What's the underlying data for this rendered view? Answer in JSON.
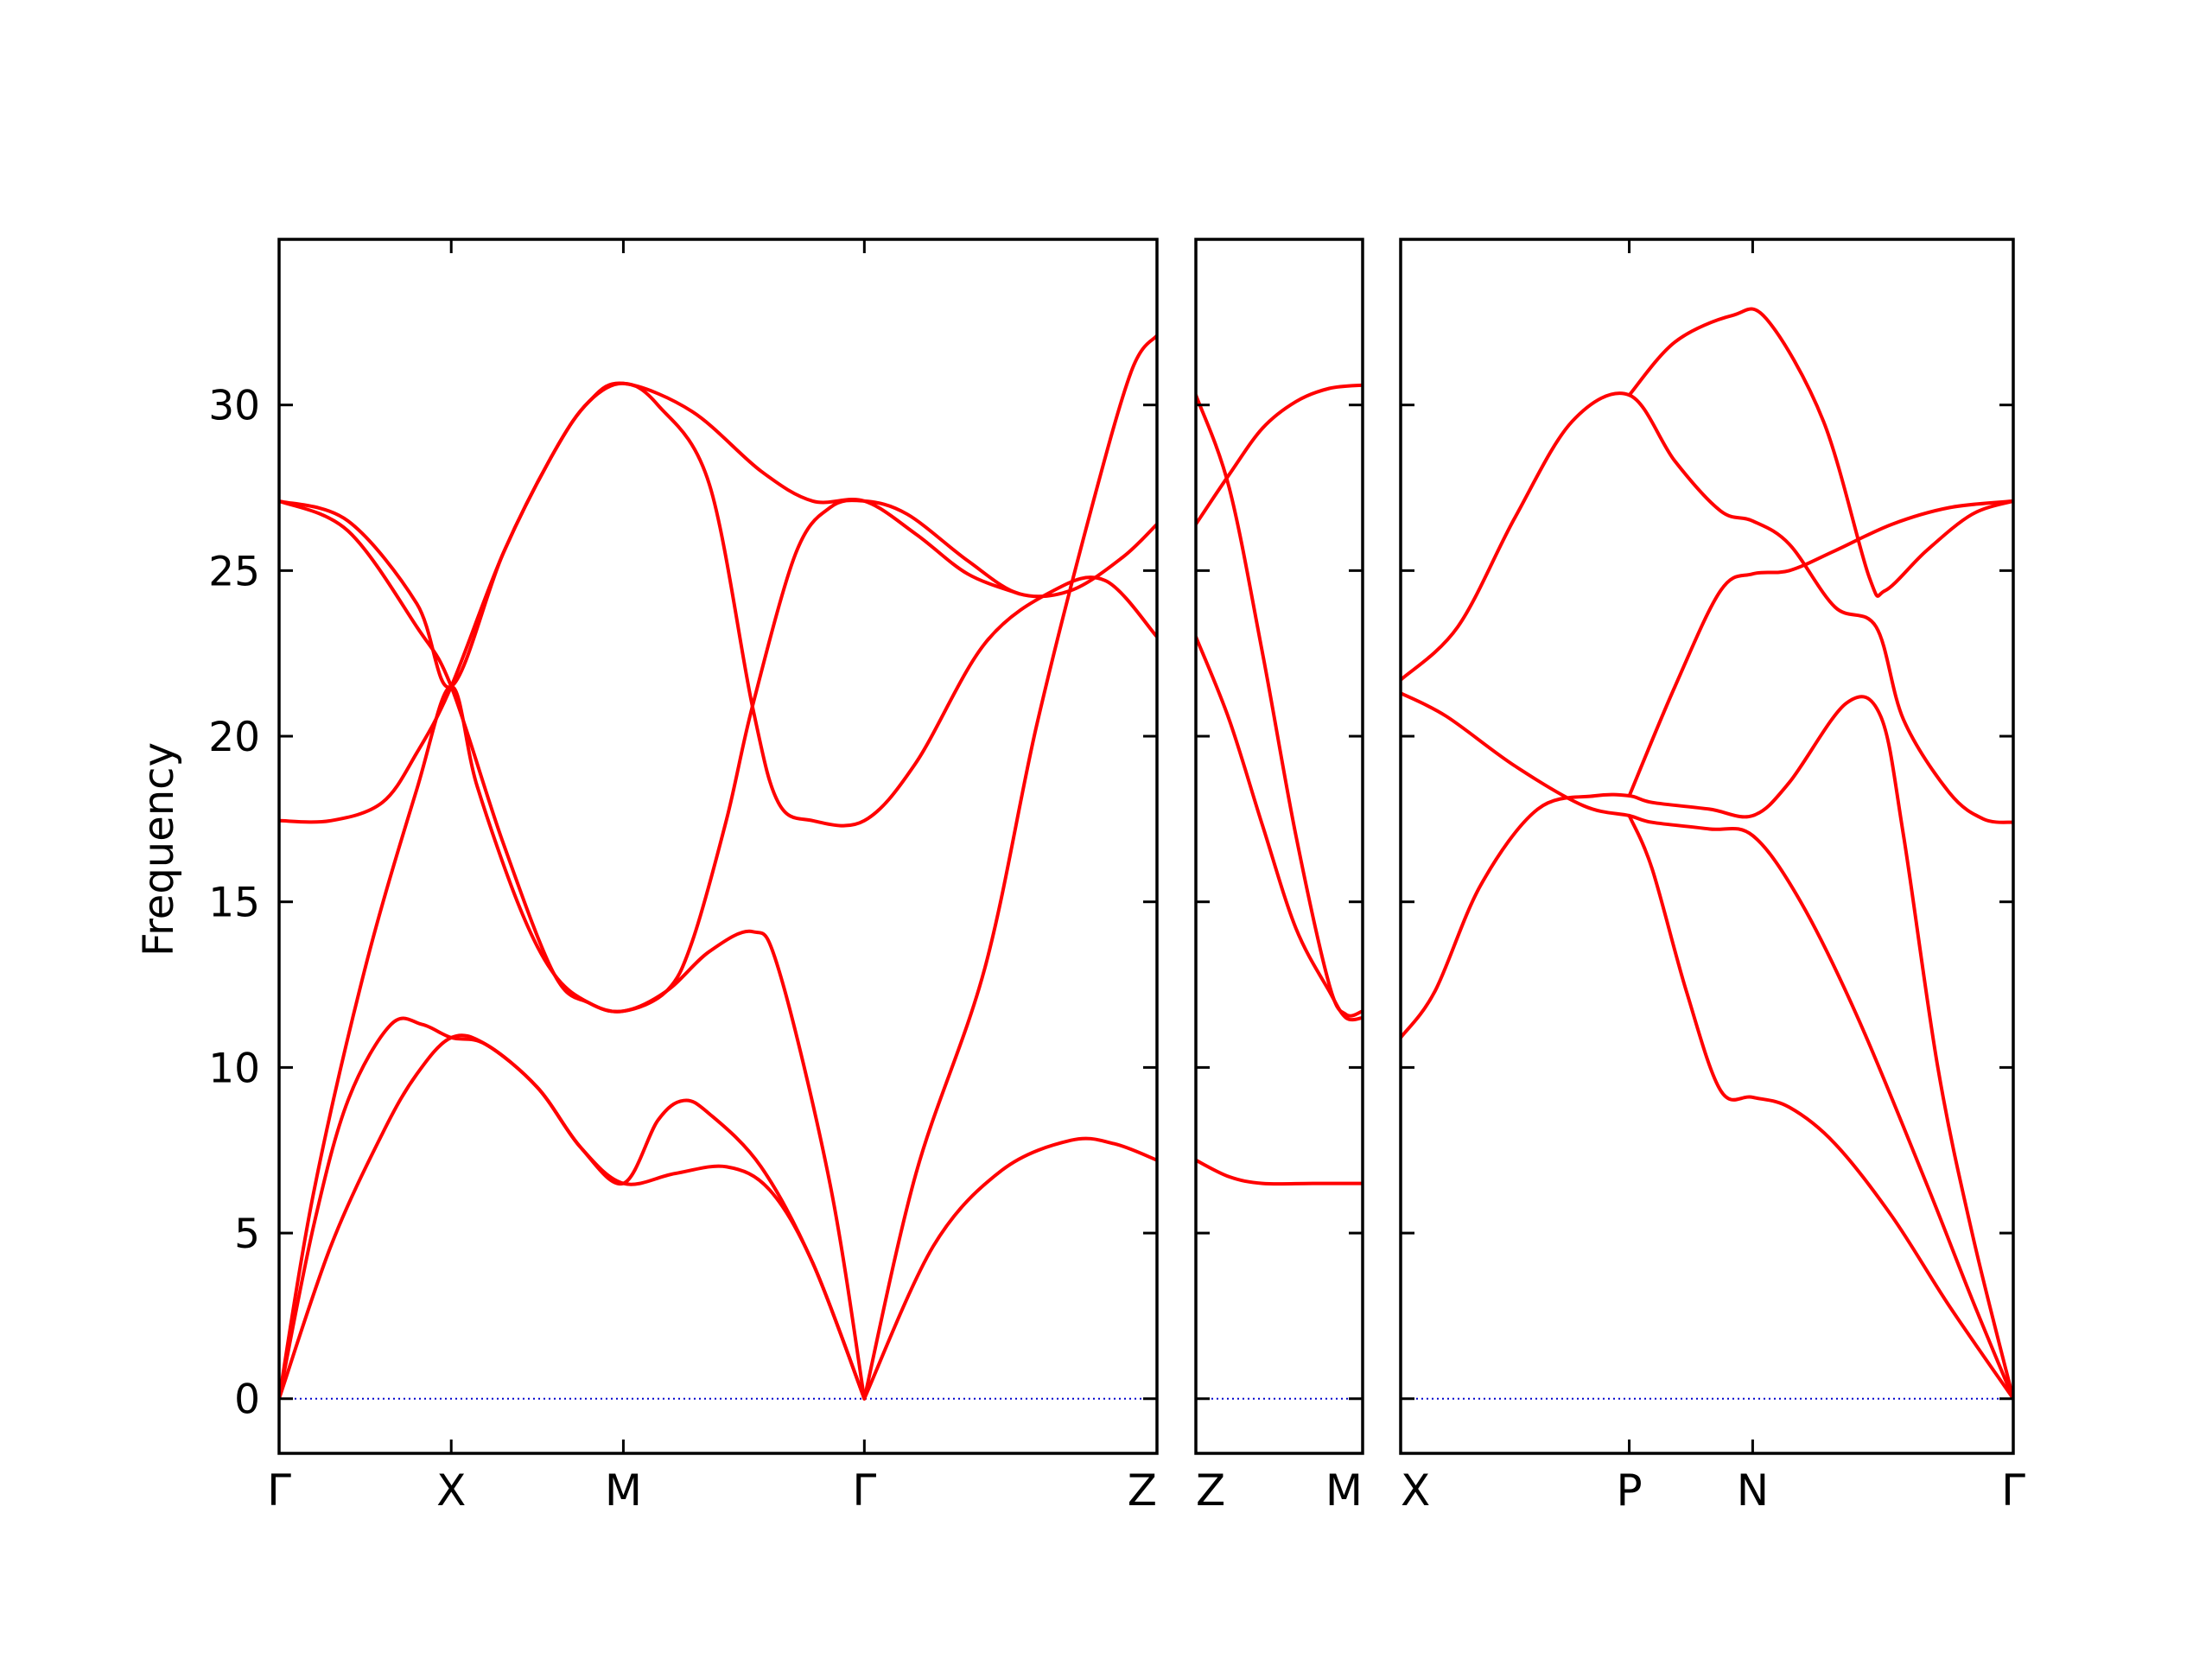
{
  "chart_data": {
    "type": "line",
    "ylabel": "Frequency",
    "ylim": [
      -1.65,
      35.0
    ],
    "yticks": [
      0,
      5,
      10,
      15,
      20,
      25,
      30
    ],
    "line_color": "#ff0000",
    "zero_line_color": "#0000cc",
    "panels": [
      {
        "xlim": [
          0,
          5.1
        ],
        "xticks": [
          {
            "x": 0,
            "label": "Γ"
          },
          {
            "x": 1.0,
            "label": "X"
          },
          {
            "x": 2.0,
            "label": "M"
          },
          {
            "x": 3.4,
            "label": "Γ"
          },
          {
            "x": 5.1,
            "label": "Z"
          }
        ],
        "bands": [
          {
            "points": [
              [
                0,
                0
              ],
              [
                0.3,
                4.6
              ],
              [
                0.6,
                8.0
              ],
              [
                0.8,
                9.8
              ],
              [
                1.0,
                10.9
              ],
              [
                1.2,
                10.7
              ],
              [
                1.5,
                9.4
              ],
              [
                1.75,
                7.6
              ],
              [
                2.0,
                6.5
              ],
              [
                2.3,
                6.8
              ],
              [
                2.6,
                7.0
              ],
              [
                2.85,
                6.3
              ],
              [
                3.1,
                4.1
              ],
              [
                3.4,
                0
              ]
            ]
          },
          {
            "points": [
              [
                0,
                0
              ],
              [
                0.2,
                5.2
              ],
              [
                0.4,
                9.0
              ],
              [
                0.65,
                11.3
              ],
              [
                0.83,
                11.3
              ],
              [
                1.0,
                10.9
              ],
              [
                1.2,
                10.7
              ],
              [
                1.5,
                9.4
              ],
              [
                1.75,
                7.6
              ],
              [
                2.0,
                6.5
              ],
              [
                2.2,
                8.4
              ],
              [
                2.35,
                9.0
              ],
              [
                2.5,
                8.6
              ],
              [
                2.8,
                7.0
              ],
              [
                3.1,
                4.1
              ],
              [
                3.4,
                0
              ]
            ]
          },
          {
            "points": [
              [
                0,
                0
              ],
              [
                0.2,
                6.2
              ],
              [
                0.5,
                13.0
              ],
              [
                0.8,
                18.4
              ],
              [
                1.0,
                21.5
              ],
              [
                1.15,
                18.5
              ],
              [
                1.4,
                14.8
              ],
              [
                1.6,
                12.8
              ],
              [
                1.8,
                11.95
              ],
              [
                2.0,
                11.7
              ],
              [
                2.25,
                12.3
              ],
              [
                2.5,
                13.5
              ],
              [
                2.75,
                14.1
              ],
              [
                2.9,
                13.0
              ],
              [
                3.2,
                6.5
              ],
              [
                3.4,
                0
              ]
            ]
          },
          {
            "points": [
              [
                0,
                17.45
              ],
              [
                0.3,
                17.45
              ],
              [
                0.6,
                18.0
              ],
              [
                0.8,
                19.5
              ],
              [
                1.0,
                21.5
              ],
              [
                1.3,
                25.5
              ],
              [
                1.6,
                28.6
              ],
              [
                1.8,
                30.1
              ],
              [
                2.0,
                30.65
              ],
              [
                2.2,
                30.0
              ],
              [
                2.5,
                27.6
              ],
              [
                2.75,
                20.9
              ],
              [
                2.9,
                18.0
              ],
              [
                3.1,
                17.45
              ],
              [
                3.4,
                17.45
              ],
              [
                3.7,
                19.2
              ],
              [
                4.1,
                22.8
              ],
              [
                4.5,
                24.4
              ],
              [
                4.8,
                24.7
              ],
              [
                5.1,
                23.0
              ]
            ]
          },
          {
            "points": [
              [
                0,
                27.1
              ],
              [
                0.4,
                26.2
              ],
              [
                0.8,
                23.3
              ],
              [
                1.0,
                21.5
              ],
              [
                1.3,
                16.8
              ],
              [
                1.6,
                12.8
              ],
              [
                1.8,
                11.95
              ],
              [
                2.0,
                11.7
              ],
              [
                2.25,
                12.3
              ],
              [
                2.4,
                13.8
              ],
              [
                2.6,
                17.5
              ],
              [
                2.75,
                20.9
              ],
              [
                3.0,
                25.5
              ],
              [
                3.2,
                26.9
              ],
              [
                3.4,
                27.1
              ],
              [
                3.65,
                26.7
              ],
              [
                4.0,
                25.3
              ],
              [
                4.3,
                24.3
              ],
              [
                4.6,
                24.4
              ],
              [
                4.9,
                25.4
              ],
              [
                5.1,
                26.4
              ]
            ]
          },
          {
            "points": [
              [
                0,
                27.1
              ],
              [
                0.4,
                26.5
              ],
              [
                0.8,
                24.0
              ],
              [
                1.0,
                21.5
              ],
              [
                1.3,
                25.5
              ],
              [
                1.6,
                28.6
              ],
              [
                1.8,
                30.1
              ],
              [
                2.0,
                30.65
              ],
              [
                2.4,
                29.8
              ],
              [
                2.8,
                28.0
              ],
              [
                3.1,
                27.1
              ],
              [
                3.4,
                27.1
              ],
              [
                3.7,
                26.1
              ],
              [
                4.0,
                24.9
              ],
              [
                4.3,
                24.3
              ]
            ]
          },
          {
            "points": [
              [
                3.4,
                0
              ],
              [
                3.7,
                6.8
              ],
              [
                4.1,
                13.0
              ],
              [
                4.4,
                20.3
              ],
              [
                4.7,
                26.5
              ],
              [
                4.95,
                31.0
              ],
              [
                5.1,
                32.1
              ]
            ]
          },
          {
            "points": [
              [
                3.4,
                0
              ],
              [
                3.8,
                4.6
              ],
              [
                4.2,
                6.9
              ],
              [
                4.6,
                7.8
              ],
              [
                4.85,
                7.7
              ],
              [
                5.1,
                7.2
              ]
            ]
          }
        ]
      },
      {
        "xlim": [
          0,
          1
        ],
        "xticks": [
          {
            "x": 0,
            "label": "Z"
          },
          {
            "x": 1,
            "label": "M"
          }
        ],
        "bands": [
          {
            "points": [
              [
                0,
                7.2
              ],
              [
                0.2,
                6.7
              ],
              [
                0.4,
                6.5
              ],
              [
                0.7,
                6.5
              ],
              [
                1.0,
                6.5
              ]
            ]
          },
          {
            "points": [
              [
                0,
                30.3
              ],
              [
                0.2,
                27.5
              ],
              [
                0.4,
                22.5
              ],
              [
                0.6,
                17.0
              ],
              [
                0.8,
                12.5
              ],
              [
                0.9,
                11.6
              ],
              [
                1.0,
                11.7
              ]
            ]
          },
          {
            "points": [
              [
                0,
                23.0
              ],
              [
                0.2,
                20.5
              ],
              [
                0.4,
                17.3
              ],
              [
                0.6,
                14.2
              ],
              [
                0.8,
                12.3
              ],
              [
                0.9,
                11.5
              ],
              [
                1.0,
                11.5
              ]
            ]
          },
          {
            "points": [
              [
                0,
                26.4
              ],
              [
                0.2,
                27.9
              ],
              [
                0.4,
                29.3
              ],
              [
                0.6,
                30.1
              ],
              [
                0.8,
                30.5
              ],
              [
                1.0,
                30.6
              ]
            ]
          }
        ]
      },
      {
        "xlim": [
          0,
          2.68
        ],
        "xticks": [
          {
            "x": 0,
            "label": "X"
          },
          {
            "x": 1.0,
            "label": "P"
          },
          {
            "x": 1.54,
            "label": "N"
          },
          {
            "x": 2.68,
            "label": "Γ"
          }
        ],
        "bands": [
          {
            "points": [
              [
                0,
                10.9
              ],
              [
                0.15,
                12.3
              ],
              [
                0.35,
                15.5
              ],
              [
                0.6,
                17.8
              ],
              [
                0.85,
                18.2
              ],
              [
                1.0,
                18.2
              ],
              [
                1.1,
                18.0
              ],
              [
                1.35,
                17.8
              ],
              [
                1.54,
                17.6
              ],
              [
                1.7,
                18.6
              ],
              [
                1.95,
                21.0
              ],
              [
                2.1,
                20.6
              ],
              [
                2.2,
                17.0
              ],
              [
                2.35,
                10.0
              ],
              [
                2.5,
                5.0
              ],
              [
                2.68,
                0
              ]
            ]
          },
          {
            "points": [
              [
                0,
                21.3
              ],
              [
                0.2,
                20.6
              ],
              [
                0.5,
                19.1
              ],
              [
                0.8,
                17.9
              ],
              [
                1.0,
                17.6
              ],
              [
                1.1,
                17.4
              ],
              [
                1.35,
                17.2
              ],
              [
                1.54,
                17.0
              ],
              [
                1.75,
                15.0
              ],
              [
                2.0,
                11.5
              ],
              [
                2.3,
                6.5
              ],
              [
                2.5,
                3.0
              ],
              [
                2.68,
                0
              ]
            ]
          },
          {
            "points": [
              [
                0,
                21.7
              ],
              [
                0.25,
                23.3
              ],
              [
                0.5,
                26.6
              ],
              [
                0.75,
                29.5
              ],
              [
                1.0,
                30.3
              ],
              [
                1.2,
                28.3
              ],
              [
                1.4,
                26.8
              ],
              [
                1.54,
                26.5
              ],
              [
                1.7,
                25.8
              ],
              [
                1.9,
                23.9
              ],
              [
                2.08,
                23.3
              ],
              [
                2.2,
                20.5
              ],
              [
                2.4,
                18.3
              ],
              [
                2.55,
                17.5
              ],
              [
                2.68,
                17.4
              ]
            ]
          },
          {
            "points": [
              [
                1.0,
                17.6
              ],
              [
                1.1,
                16.0
              ],
              [
                1.25,
                12.3
              ],
              [
                1.4,
                9.3
              ],
              [
                1.54,
                9.1
              ],
              [
                1.7,
                8.8
              ],
              [
                1.9,
                7.7
              ],
              [
                2.15,
                5.5
              ],
              [
                2.4,
                2.8
              ],
              [
                2.68,
                0
              ]
            ]
          },
          {
            "points": [
              [
                1.0,
                18.2
              ],
              [
                1.2,
                21.5
              ],
              [
                1.4,
                24.4
              ],
              [
                1.54,
                24.9
              ],
              [
                1.7,
                25.0
              ],
              [
                1.9,
                25.6
              ],
              [
                2.15,
                26.4
              ],
              [
                2.4,
                26.9
              ],
              [
                2.68,
                27.1
              ]
            ]
          },
          {
            "points": [
              [
                1.0,
                30.3
              ],
              [
                1.2,
                31.9
              ],
              [
                1.45,
                32.7
              ],
              [
                1.6,
                32.6
              ],
              [
                1.85,
                29.5
              ],
              [
                2.05,
                24.8
              ],
              [
                2.12,
                24.4
              ],
              [
                2.3,
                25.6
              ],
              [
                2.5,
                26.7
              ],
              [
                2.68,
                27.1
              ]
            ]
          }
        ]
      }
    ]
  }
}
